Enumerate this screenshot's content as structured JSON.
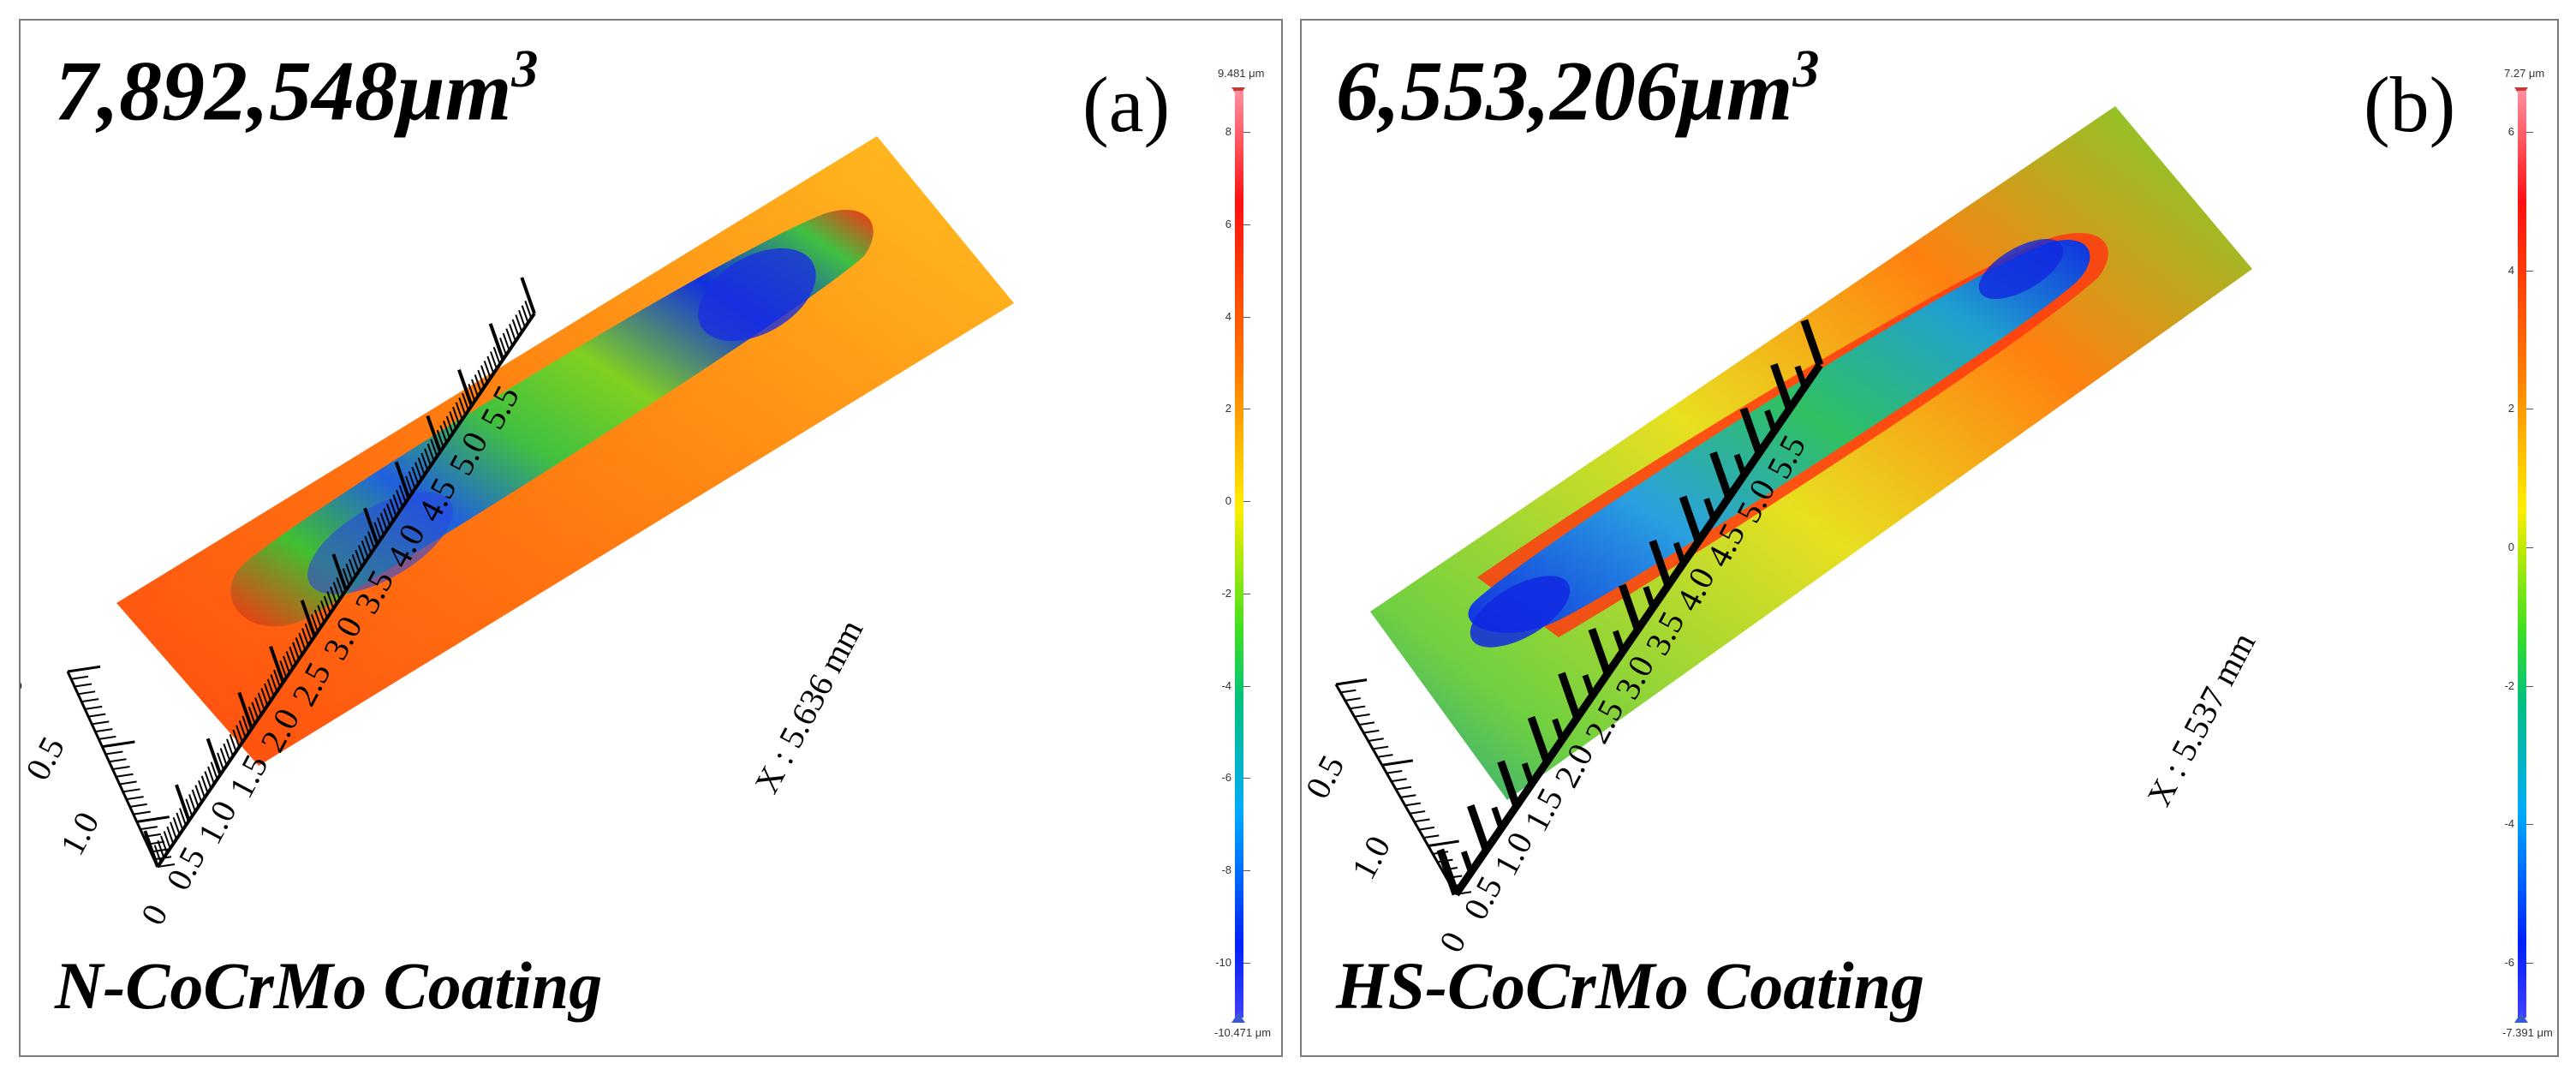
{
  "panel_a": {
    "volume_main": "7,892,548",
    "volume_unit": "μm",
    "volume_exp": "3",
    "label": "(a)",
    "coating": "N-CoCrMo Coating",
    "x_axis_label": "X : 5.636 mm",
    "x_ticks": [
      "0",
      "0.5",
      "1.0",
      "1.5",
      "2.0",
      "2.5",
      "3.0",
      "3.5",
      "4.0",
      "4.5",
      "5.0",
      "5.5"
    ],
    "y_ticks": [
      "0",
      "0.5",
      "1.0"
    ],
    "colorbar": {
      "max_label": "9.481 μm",
      "min_label": "-10.471 μm",
      "ticks": [
        "8",
        "6",
        "4",
        "2",
        "0",
        "-2",
        "-4",
        "-6",
        "-8",
        "-10"
      ]
    }
  },
  "panel_b": {
    "volume_main": "6,553,206",
    "volume_unit": "μm",
    "volume_exp": "3",
    "label": "(b)",
    "coating": "HS-CoCrMo Coating",
    "x_axis_label": "X : 5.537 mm",
    "x_ticks": [
      "0",
      "0.5",
      "1.0",
      "1.5",
      "2.0",
      "2.5",
      "3.0",
      "3.5",
      "4.0",
      "4.5",
      "5.0",
      "5.5"
    ],
    "y_ticks": [
      "0",
      "0.5",
      "1.0"
    ],
    "colorbar": {
      "max_label": "7.27 μm",
      "min_label": "-7.391 μm",
      "ticks": [
        "6",
        "4",
        "2",
        "0",
        "-2",
        "-4",
        "-6"
      ]
    }
  },
  "colors": {
    "frame": "#7a7a7a",
    "surface_high": "#ff3a10",
    "surface_mid": "#ffcc00",
    "surface_low": "#1030e0"
  }
}
